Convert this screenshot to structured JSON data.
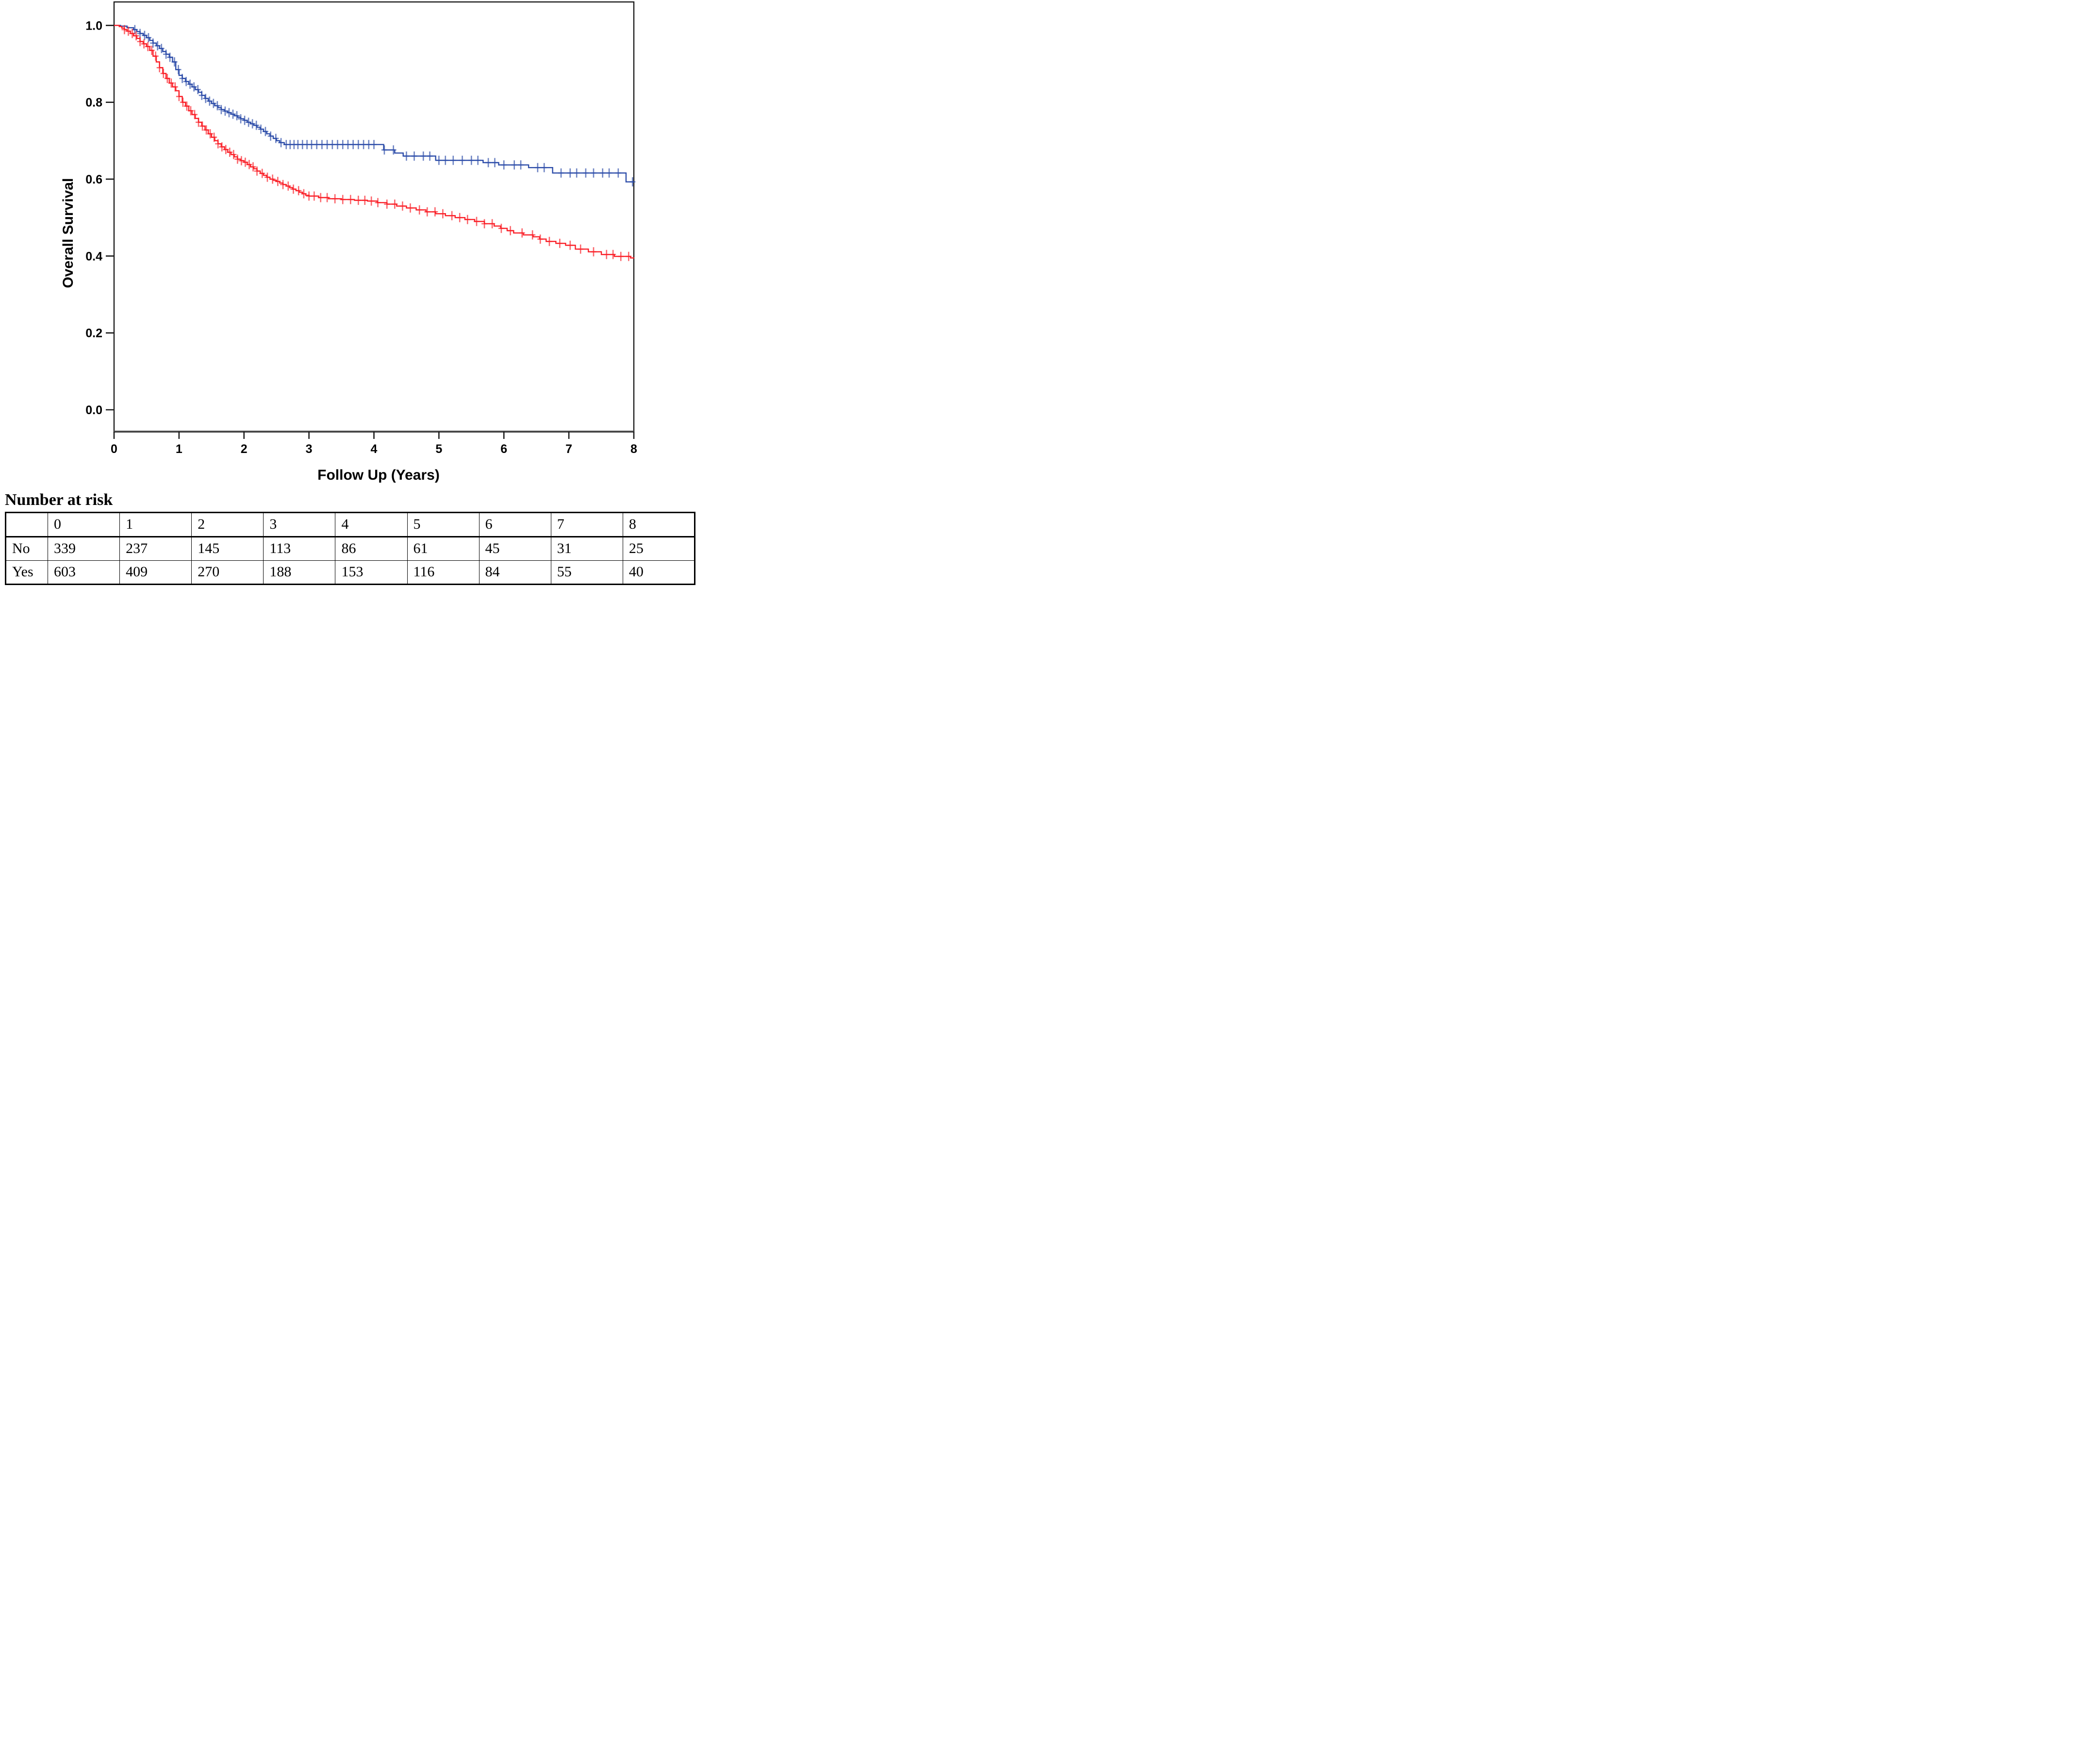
{
  "figure": {
    "y_axis": {
      "title": "Overall Survival",
      "tick_labels": [
        "1.0",
        "0.8",
        "0.6",
        "0.4",
        "0.2",
        "0.0"
      ],
      "tick_values": [
        1.0,
        0.8,
        0.6,
        0.4,
        0.2,
        0.0
      ]
    },
    "x_axis": {
      "title": "Follow Up (Years)",
      "tick_labels": [
        "0",
        "1",
        "2",
        "3",
        "4",
        "5",
        "6",
        "7",
        "8"
      ],
      "tick_values": [
        0,
        1,
        2,
        3,
        4,
        5,
        6,
        7,
        8
      ]
    }
  },
  "colors": {
    "no_group": "#2B4BA8",
    "yes_group": "#FA1F27",
    "axis": "#1a1a1a",
    "baseline": "#4a4a4a",
    "text": "#000000"
  },
  "risk_table": {
    "title": "Number at risk",
    "columns": [
      "",
      "0",
      "1",
      "2",
      "3",
      "4",
      "5",
      "6",
      "7",
      "8"
    ],
    "rows": [
      {
        "label": "No",
        "values": [
          "339",
          "237",
          "145",
          "113",
          "86",
          "61",
          "45",
          "31",
          "25"
        ]
      },
      {
        "label": "Yes",
        "values": [
          "603",
          "409",
          "270",
          "188",
          "153",
          "116",
          "84",
          "55",
          "40"
        ]
      }
    ]
  },
  "chart_data": {
    "type": "line",
    "subtype": "kaplan-meier-step",
    "title": "",
    "xlabel": "Follow Up (Years)",
    "ylabel": "Overall Survival",
    "xlim": [
      0,
      8
    ],
    "ylim": [
      0.0,
      1.0
    ],
    "grid": false,
    "legend": "none",
    "series": [
      {
        "name": "No",
        "color": "#2B4BA8",
        "steps": [
          [
            0,
            1.0
          ],
          [
            0.1,
            0.998
          ],
          [
            0.2,
            0.994
          ],
          [
            0.3,
            0.989
          ],
          [
            0.35,
            0.984
          ],
          [
            0.4,
            0.979
          ],
          [
            0.45,
            0.974
          ],
          [
            0.5,
            0.968
          ],
          [
            0.55,
            0.961
          ],
          [
            0.6,
            0.954
          ],
          [
            0.65,
            0.947
          ],
          [
            0.7,
            0.94
          ],
          [
            0.75,
            0.932
          ],
          [
            0.8,
            0.925
          ],
          [
            0.85,
            0.917
          ],
          [
            0.9,
            0.905
          ],
          [
            0.95,
            0.885
          ],
          [
            1.0,
            0.87
          ],
          [
            1.05,
            0.862
          ],
          [
            1.1,
            0.854
          ],
          [
            1.15,
            0.847
          ],
          [
            1.2,
            0.84
          ],
          [
            1.25,
            0.833
          ],
          [
            1.3,
            0.826
          ],
          [
            1.35,
            0.818
          ],
          [
            1.4,
            0.81
          ],
          [
            1.45,
            0.803
          ],
          [
            1.5,
            0.797
          ],
          [
            1.55,
            0.791
          ],
          [
            1.6,
            0.786
          ],
          [
            1.65,
            0.781
          ],
          [
            1.7,
            0.777
          ],
          [
            1.75,
            0.773
          ],
          [
            1.8,
            0.769
          ],
          [
            1.85,
            0.765
          ],
          [
            1.9,
            0.761
          ],
          [
            1.95,
            0.757
          ],
          [
            2.0,
            0.753
          ],
          [
            2.05,
            0.748
          ],
          [
            2.1,
            0.744
          ],
          [
            2.15,
            0.74
          ],
          [
            2.2,
            0.735
          ],
          [
            2.25,
            0.73
          ],
          [
            2.3,
            0.724
          ],
          [
            2.35,
            0.718
          ],
          [
            2.4,
            0.712
          ],
          [
            2.45,
            0.706
          ],
          [
            2.5,
            0.7
          ],
          [
            2.55,
            0.695
          ],
          [
            2.62,
            0.69
          ],
          [
            4.15,
            0.676
          ],
          [
            4.32,
            0.668
          ],
          [
            4.45,
            0.66
          ],
          [
            4.95,
            0.649
          ],
          [
            5.68,
            0.643
          ],
          [
            5.92,
            0.637
          ],
          [
            6.38,
            0.63
          ],
          [
            6.75,
            0.616
          ],
          [
            7.88,
            0.593
          ],
          [
            8.0,
            0.593
          ]
        ],
        "censor_times": [
          0.32,
          0.4,
          0.47,
          0.53,
          0.6,
          0.67,
          0.73,
          0.8,
          0.86,
          0.93,
          0.99,
          1.05,
          1.11,
          1.17,
          1.23,
          1.29,
          1.35,
          1.41,
          1.47,
          1.53,
          1.59,
          1.65,
          1.71,
          1.77,
          1.83,
          1.89,
          1.95,
          2.01,
          2.07,
          2.13,
          2.19,
          2.26,
          2.33,
          2.41,
          2.49,
          2.57,
          2.65,
          2.71,
          2.77,
          2.83,
          2.9,
          2.97,
          3.04,
          3.12,
          3.2,
          3.28,
          3.36,
          3.44,
          3.52,
          3.6,
          3.68,
          3.76,
          3.84,
          3.92,
          4.0,
          4.16,
          4.3,
          4.5,
          4.62,
          4.76,
          4.86,
          5.0,
          5.1,
          5.22,
          5.36,
          5.5,
          5.6,
          5.76,
          5.86,
          6.0,
          6.16,
          6.26,
          6.52,
          6.62,
          6.88,
          7.02,
          7.12,
          7.26,
          7.38,
          7.52,
          7.62,
          7.76,
          7.98
        ]
      },
      {
        "name": "Yes",
        "color": "#FA1F27",
        "steps": [
          [
            0,
            1.0
          ],
          [
            0.08,
            0.997
          ],
          [
            0.12,
            0.993
          ],
          [
            0.16,
            0.989
          ],
          [
            0.2,
            0.985
          ],
          [
            0.25,
            0.979
          ],
          [
            0.3,
            0.973
          ],
          [
            0.35,
            0.966
          ],
          [
            0.4,
            0.958
          ],
          [
            0.45,
            0.952
          ],
          [
            0.5,
            0.945
          ],
          [
            0.55,
            0.935
          ],
          [
            0.6,
            0.92
          ],
          [
            0.65,
            0.905
          ],
          [
            0.7,
            0.89
          ],
          [
            0.75,
            0.875
          ],
          [
            0.8,
            0.862
          ],
          [
            0.85,
            0.85
          ],
          [
            0.9,
            0.84
          ],
          [
            0.95,
            0.83
          ],
          [
            1.0,
            0.815
          ],
          [
            1.05,
            0.8
          ],
          [
            1.1,
            0.79
          ],
          [
            1.15,
            0.778
          ],
          [
            1.2,
            0.768
          ],
          [
            1.25,
            0.758
          ],
          [
            1.3,
            0.748
          ],
          [
            1.35,
            0.738
          ],
          [
            1.4,
            0.728
          ],
          [
            1.45,
            0.718
          ],
          [
            1.5,
            0.709
          ],
          [
            1.55,
            0.7
          ],
          [
            1.6,
            0.692
          ],
          [
            1.65,
            0.684
          ],
          [
            1.7,
            0.677
          ],
          [
            1.75,
            0.67
          ],
          [
            1.8,
            0.664
          ],
          [
            1.85,
            0.658
          ],
          [
            1.9,
            0.652
          ],
          [
            1.95,
            0.648
          ],
          [
            2.0,
            0.644
          ],
          [
            2.05,
            0.638
          ],
          [
            2.1,
            0.632
          ],
          [
            2.15,
            0.627
          ],
          [
            2.2,
            0.621
          ],
          [
            2.25,
            0.615
          ],
          [
            2.3,
            0.61
          ],
          [
            2.35,
            0.605
          ],
          [
            2.4,
            0.6
          ],
          [
            2.45,
            0.597
          ],
          [
            2.5,
            0.594
          ],
          [
            2.55,
            0.59
          ],
          [
            2.6,
            0.586
          ],
          [
            2.65,
            0.582
          ],
          [
            2.7,
            0.578
          ],
          [
            2.75,
            0.574
          ],
          [
            2.8,
            0.57
          ],
          [
            2.85,
            0.566
          ],
          [
            2.9,
            0.562
          ],
          [
            2.95,
            0.558
          ],
          [
            3.0,
            0.556
          ],
          [
            3.15,
            0.552
          ],
          [
            3.3,
            0.549
          ],
          [
            3.5,
            0.547
          ],
          [
            3.7,
            0.545
          ],
          [
            3.9,
            0.543
          ],
          [
            4.05,
            0.539
          ],
          [
            4.2,
            0.535
          ],
          [
            4.35,
            0.53
          ],
          [
            4.5,
            0.525
          ],
          [
            4.65,
            0.52
          ],
          [
            4.8,
            0.515
          ],
          [
            4.95,
            0.51
          ],
          [
            5.1,
            0.505
          ],
          [
            5.25,
            0.5
          ],
          [
            5.4,
            0.495
          ],
          [
            5.55,
            0.49
          ],
          [
            5.7,
            0.484
          ],
          [
            5.85,
            0.478
          ],
          [
            5.95,
            0.472
          ],
          [
            6.05,
            0.466
          ],
          [
            6.15,
            0.46
          ],
          [
            6.3,
            0.455
          ],
          [
            6.45,
            0.45
          ],
          [
            6.55,
            0.444
          ],
          [
            6.65,
            0.438
          ],
          [
            6.8,
            0.433
          ],
          [
            6.95,
            0.428
          ],
          [
            7.1,
            0.418
          ],
          [
            7.3,
            0.411
          ],
          [
            7.5,
            0.404
          ],
          [
            7.7,
            0.399
          ],
          [
            7.95,
            0.395
          ],
          [
            8.0,
            0.394
          ]
        ],
        "censor_times": [
          0.16,
          0.22,
          0.28,
          0.34,
          0.4,
          0.46,
          0.52,
          0.58,
          0.64,
          0.7,
          0.76,
          0.82,
          0.88,
          0.94,
          1.0,
          1.06,
          1.12,
          1.18,
          1.24,
          1.3,
          1.36,
          1.42,
          1.48,
          1.54,
          1.6,
          1.66,
          1.72,
          1.78,
          1.84,
          1.9,
          1.96,
          2.02,
          2.08,
          2.14,
          2.2,
          2.28,
          2.36,
          2.44,
          2.52,
          2.6,
          2.68,
          2.76,
          2.84,
          2.92,
          3.0,
          3.08,
          3.18,
          3.28,
          3.4,
          3.52,
          3.64,
          3.76,
          3.86,
          3.96,
          4.06,
          4.2,
          4.32,
          4.44,
          4.56,
          4.7,
          4.82,
          4.94,
          5.06,
          5.2,
          5.32,
          5.44,
          5.58,
          5.7,
          5.82,
          5.96,
          6.1,
          6.28,
          6.44,
          6.56,
          6.7,
          6.86,
          7.02,
          7.18,
          7.38,
          7.58,
          7.68,
          7.8,
          7.92
        ]
      }
    ]
  }
}
